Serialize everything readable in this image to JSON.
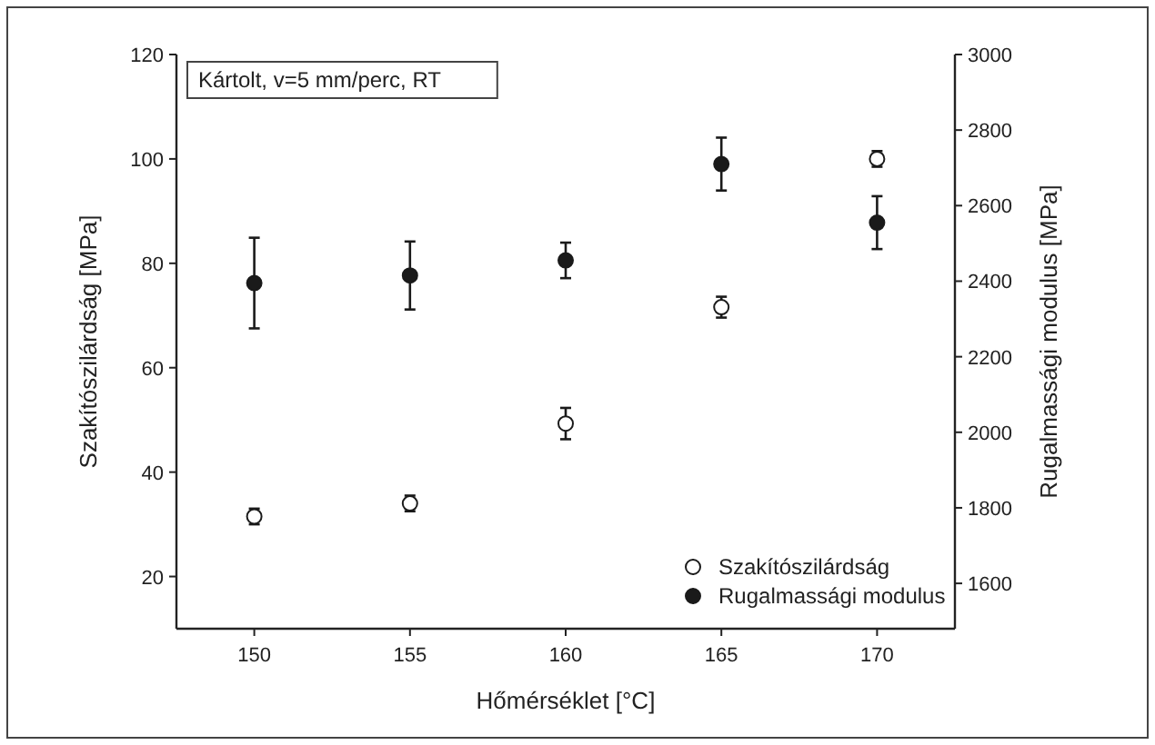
{
  "chart_data": {
    "type": "scatter",
    "xlabel": "Hőmérséklet [°C]",
    "ylabel": "Szakítószilárdság [MPa]",
    "y2label": "Rugalmassági modulus [MPa]",
    "annotations": [
      "Kártolt, v=5 mm/perc, RT"
    ],
    "x": [
      150,
      155,
      160,
      165,
      170
    ],
    "xlim": [
      147.5,
      172.5
    ],
    "xticks": [
      150,
      155,
      160,
      165,
      170
    ],
    "ylim": [
      10,
      120
    ],
    "yticks": [
      20,
      40,
      60,
      80,
      100,
      120
    ],
    "y2lim": [
      1480,
      3000
    ],
    "y2ticks": [
      1600,
      1800,
      2000,
      2200,
      2400,
      2600,
      2800,
      3000
    ],
    "legend": "bottom right",
    "grid": false,
    "marker": "circle",
    "series": [
      {
        "name": "Szakítószilárdság",
        "color": "#ffffff",
        "values": [
          31.5,
          34,
          49.3,
          71.6,
          100
        ],
        "errors": [
          1.5,
          1.5,
          3,
          2,
          1.5
        ]
      },
      {
        "name": "Rugalmassági modulus",
        "color": "#1a1a1a",
        "axis": "y2",
        "values": [
          2395,
          2415,
          2455,
          2710,
          2555
        ],
        "errors": [
          120,
          90,
          47,
          70,
          70
        ]
      }
    ]
  }
}
